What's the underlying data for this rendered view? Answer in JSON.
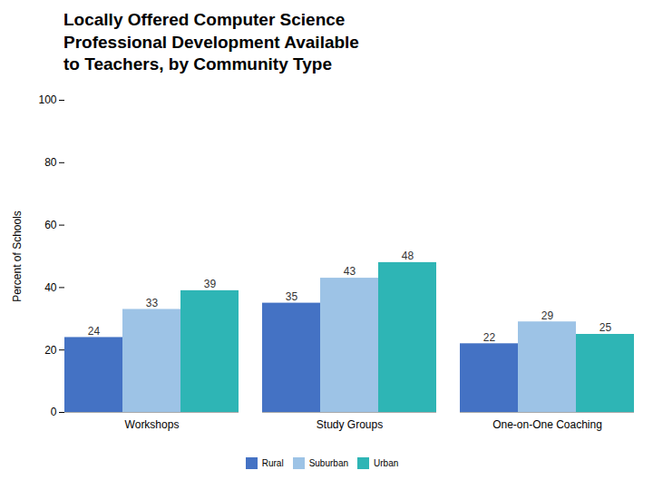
{
  "chart_data": {
    "type": "bar",
    "title": "Locally Offered Computer Science\nProfessional Development Available\nto Teachers, by Community Type",
    "categories": [
      "Workshops",
      "Study Groups",
      "One-on-One Coaching"
    ],
    "series": [
      {
        "name": "Rural",
        "color": "#4472c4",
        "values": [
          24,
          35,
          22
        ]
      },
      {
        "name": "Suburban",
        "color": "#9dc3e6",
        "values": [
          33,
          43,
          29
        ]
      },
      {
        "name": "Urban",
        "color": "#2eb5b5",
        "values": [
          39,
          48,
          25
        ]
      }
    ],
    "ylabel": "Percent of Schools",
    "ylim": [
      0,
      100
    ],
    "yticks": [
      0,
      20,
      40,
      60,
      80,
      100
    ],
    "grid": false,
    "legend": "bottom",
    "data_labels": true
  }
}
